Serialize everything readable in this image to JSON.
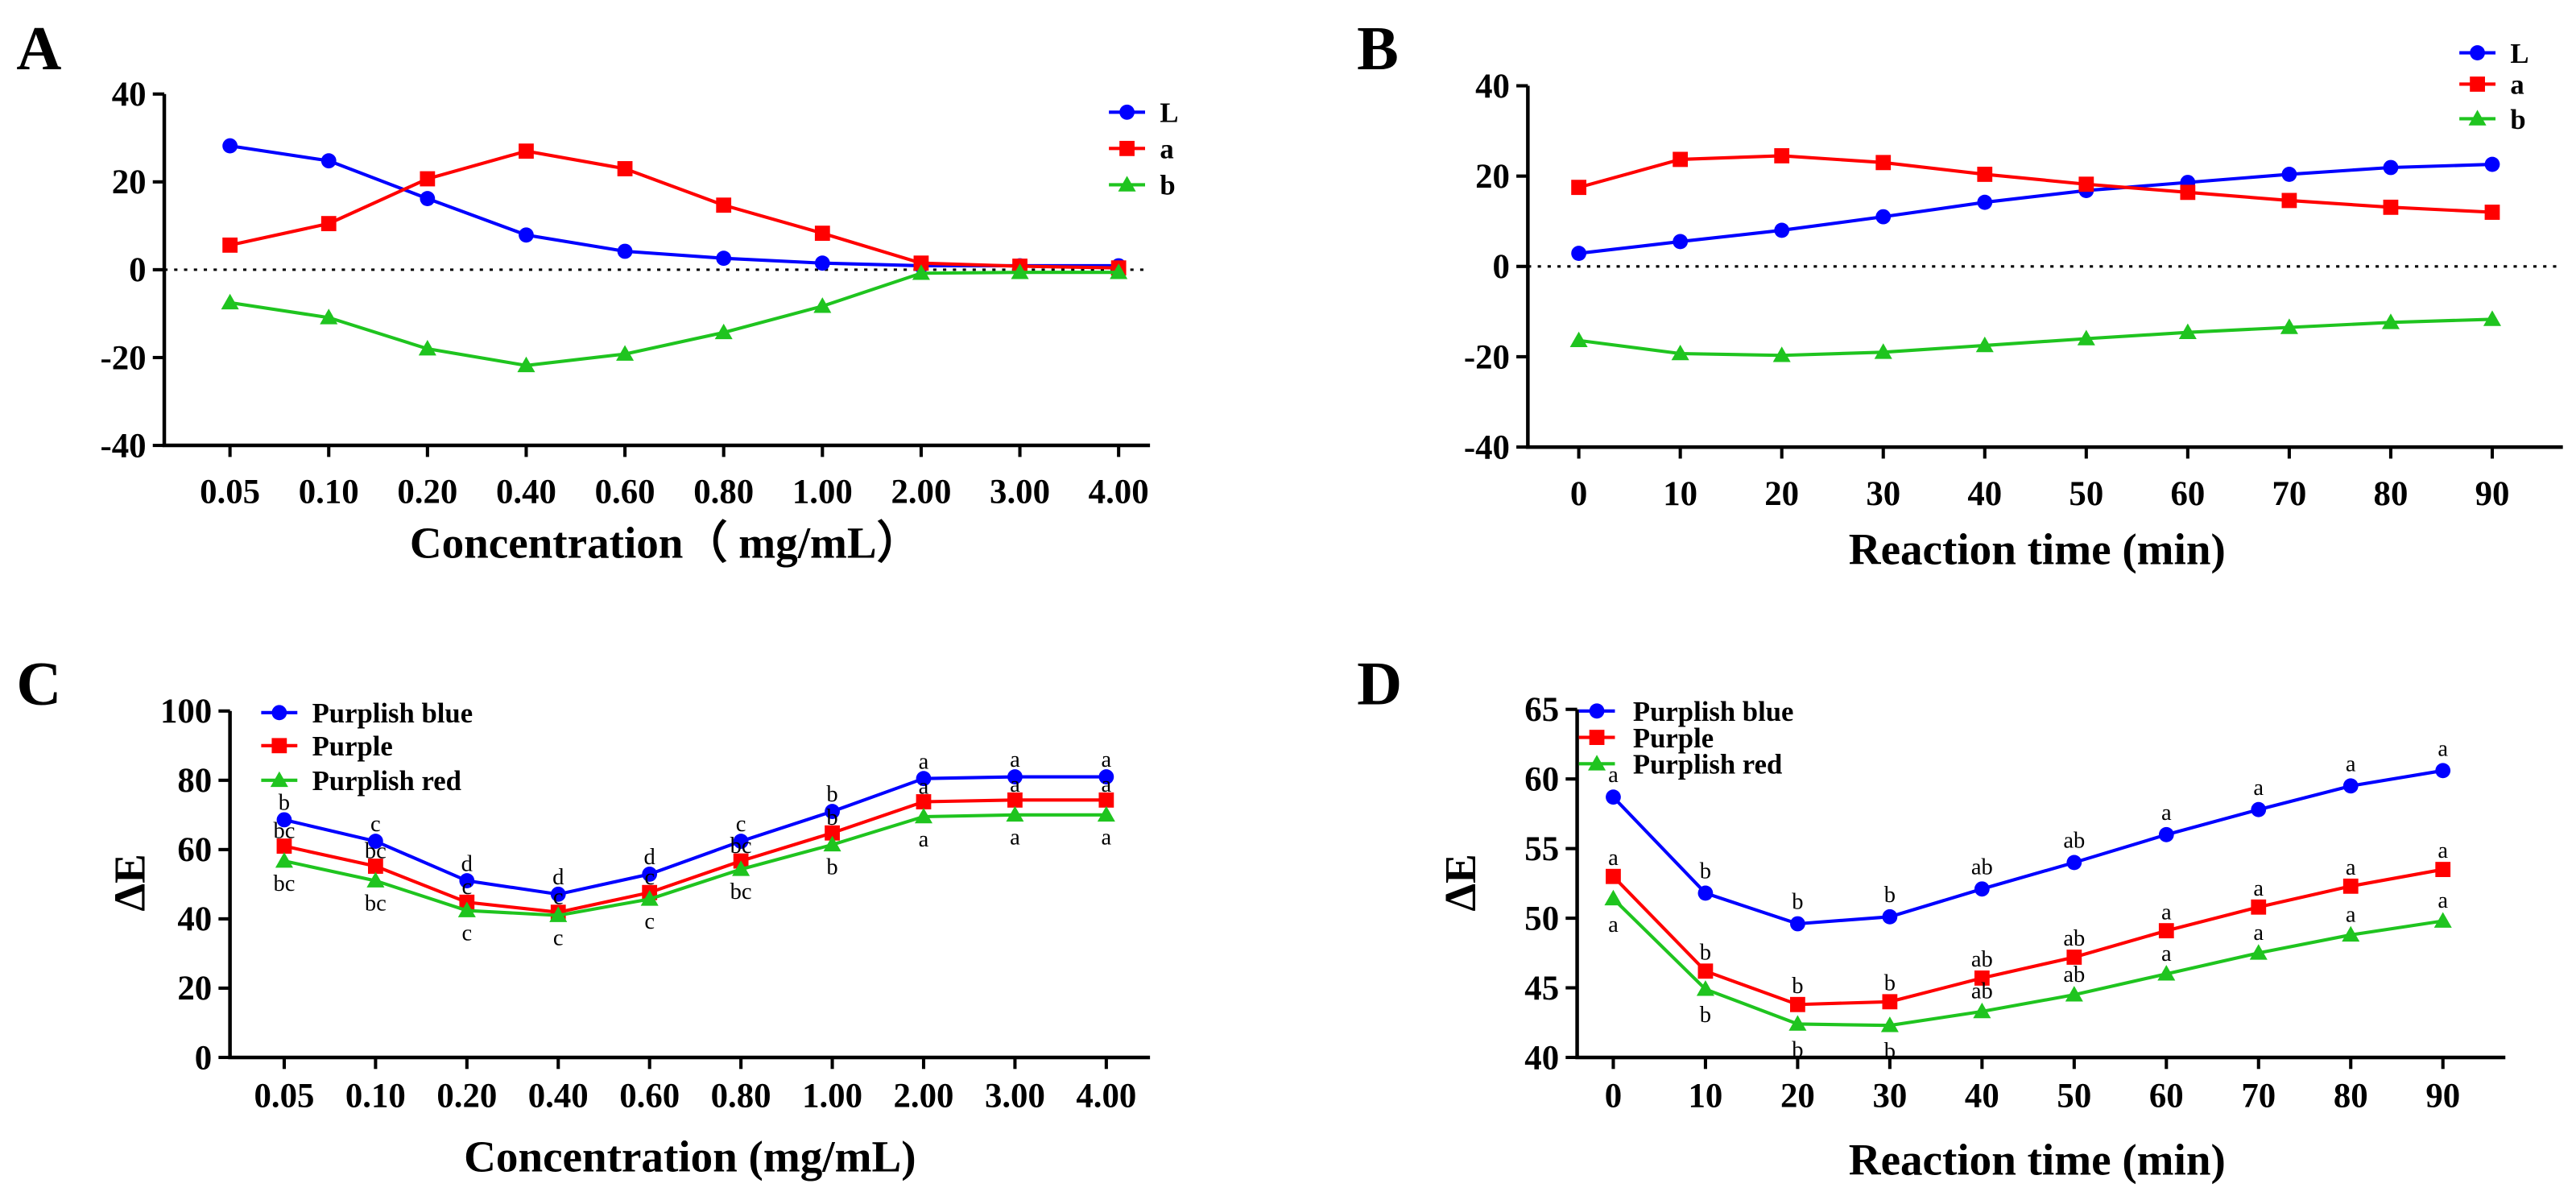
{
  "chart_data": [
    {
      "panel_label": "A",
      "type": "line",
      "title": "",
      "xlabel": "Concentration（ mg/mL）",
      "ylabel": "",
      "categories": [
        "0.05",
        "0.10",
        "0.20",
        "0.40",
        "0.60",
        "0.80",
        "1.00",
        "2.00",
        "3.00",
        "4.00"
      ],
      "ylim": [
        -40,
        40
      ],
      "yticks": [
        -40,
        -20,
        0,
        20,
        40
      ],
      "zero_line": "dotted",
      "legend": "top-right",
      "series": [
        {
          "name": "L",
          "color": "#0000ff",
          "marker": "circle",
          "values": [
            28.2,
            24.8,
            16.2,
            7.9,
            4.2,
            2.6,
            1.5,
            0.9,
            0.9,
            0.9
          ]
        },
        {
          "name": "a",
          "color": "#ff0000",
          "marker": "square",
          "values": [
            5.6,
            10.5,
            20.7,
            27,
            23,
            14.7,
            8.3,
            1.5,
            0.8,
            0.4
          ]
        },
        {
          "name": "b",
          "color": "#1fc41f",
          "marker": "triangle",
          "values": [
            -7.5,
            -10.9,
            -18,
            -21.8,
            -19.2,
            -14.3,
            -8.3,
            -0.8,
            -0.6,
            -0.6
          ]
        }
      ]
    },
    {
      "panel_label": "B",
      "type": "line",
      "title": "",
      "xlabel": "Reaction time (min)",
      "ylabel": "",
      "x": [
        0,
        10,
        20,
        30,
        40,
        50,
        60,
        70,
        80,
        90
      ],
      "ylim": [
        -40,
        40
      ],
      "yticks": [
        -40,
        -20,
        0,
        20,
        40
      ],
      "zero_line": "dotted",
      "legend": "top-right",
      "series": [
        {
          "name": "L",
          "color": "#0000ff",
          "marker": "circle",
          "values": [
            2.9,
            5.5,
            8,
            11,
            14.2,
            16.8,
            18.6,
            20.4,
            21.9,
            22.6
          ]
        },
        {
          "name": "a",
          "color": "#ff0000",
          "marker": "square",
          "values": [
            17.5,
            23.7,
            24.5,
            23,
            20.4,
            18.2,
            16.4,
            14.6,
            13.1,
            12
          ]
        },
        {
          "name": "b",
          "color": "#1fc41f",
          "marker": "triangle",
          "values": [
            -16.4,
            -19.3,
            -19.7,
            -19,
            -17.5,
            -16,
            -14.6,
            -13.5,
            -12.4,
            -11.7
          ]
        }
      ]
    },
    {
      "panel_label": "C",
      "type": "line",
      "title": "",
      "xlabel": "Concentration (mg/mL)",
      "ylabel": "ΔE",
      "categories": [
        "0.05",
        "0.10",
        "0.20",
        "0.40",
        "0.60",
        "0.80",
        "1.00",
        "2.00",
        "3.00",
        "4.00"
      ],
      "ylim": [
        0,
        100
      ],
      "yticks": [
        0,
        20,
        40,
        60,
        80,
        100
      ],
      "legend": "top-left",
      "series": [
        {
          "name": "Purplish blue",
          "color": "#0000ff",
          "marker": "circle",
          "values": [
            68.6,
            62.4,
            51,
            47.1,
            52.9,
            62.4,
            71,
            80.5,
            81,
            81
          ],
          "letters": [
            "b",
            "c",
            "d",
            "d",
            "d",
            "c",
            "b",
            "a",
            "a",
            "a"
          ]
        },
        {
          "name": "Purple",
          "color": "#ff0000",
          "marker": "square",
          "values": [
            61,
            55.2,
            44.8,
            41.9,
            47.6,
            56.7,
            64.8,
            73.8,
            74.3,
            74.3
          ],
          "letters": [
            "bc",
            "bc",
            "c",
            "c",
            "c",
            "bc",
            "b",
            "a",
            "a",
            "a"
          ]
        },
        {
          "name": "Purplish red",
          "color": "#1fc41f",
          "marker": "triangle",
          "values": [
            56.7,
            51,
            42.4,
            41,
            45.7,
            54.3,
            61.4,
            69.5,
            70,
            70
          ],
          "letters": [
            "bc",
            "bc",
            "c",
            "c",
            "c",
            "bc",
            "b",
            "a",
            "a",
            "a"
          ]
        }
      ]
    },
    {
      "panel_label": "D",
      "type": "line",
      "title": "",
      "xlabel": "Reaction time (min)",
      "ylabel": "ΔE",
      "x": [
        0,
        10,
        20,
        30,
        40,
        50,
        60,
        70,
        80,
        90
      ],
      "ylim": [
        40,
        65
      ],
      "yticks": [
        40,
        45,
        50,
        55,
        60,
        65
      ],
      "legend": "top-left",
      "series": [
        {
          "name": "Purplish blue",
          "color": "#0000ff",
          "marker": "circle",
          "values": [
            58.7,
            51.8,
            49.6,
            50.1,
            52.1,
            54,
            56,
            57.8,
            59.5,
            60.6
          ],
          "letters": [
            "a",
            "b",
            "b",
            "b",
            "ab",
            "ab",
            "a",
            "a",
            "a",
            "a"
          ]
        },
        {
          "name": "Purple",
          "color": "#ff0000",
          "marker": "square",
          "values": [
            53,
            46.2,
            43.8,
            44,
            45.7,
            47.2,
            49.1,
            50.8,
            52.3,
            53.5
          ],
          "letters": [
            "a",
            "b",
            "b",
            "b",
            "ab",
            "ab",
            "a",
            "a",
            "a",
            "a"
          ]
        },
        {
          "name": "Purplish red",
          "color": "#1fc41f",
          "marker": "triangle",
          "values": [
            51.4,
            44.9,
            42.4,
            42.3,
            43.3,
            44.5,
            46,
            47.5,
            48.8,
            49.8
          ],
          "letters": [
            "a",
            "b",
            "b",
            "b",
            "ab",
            "ab",
            "a",
            "a",
            "a",
            "a"
          ]
        }
      ]
    }
  ]
}
